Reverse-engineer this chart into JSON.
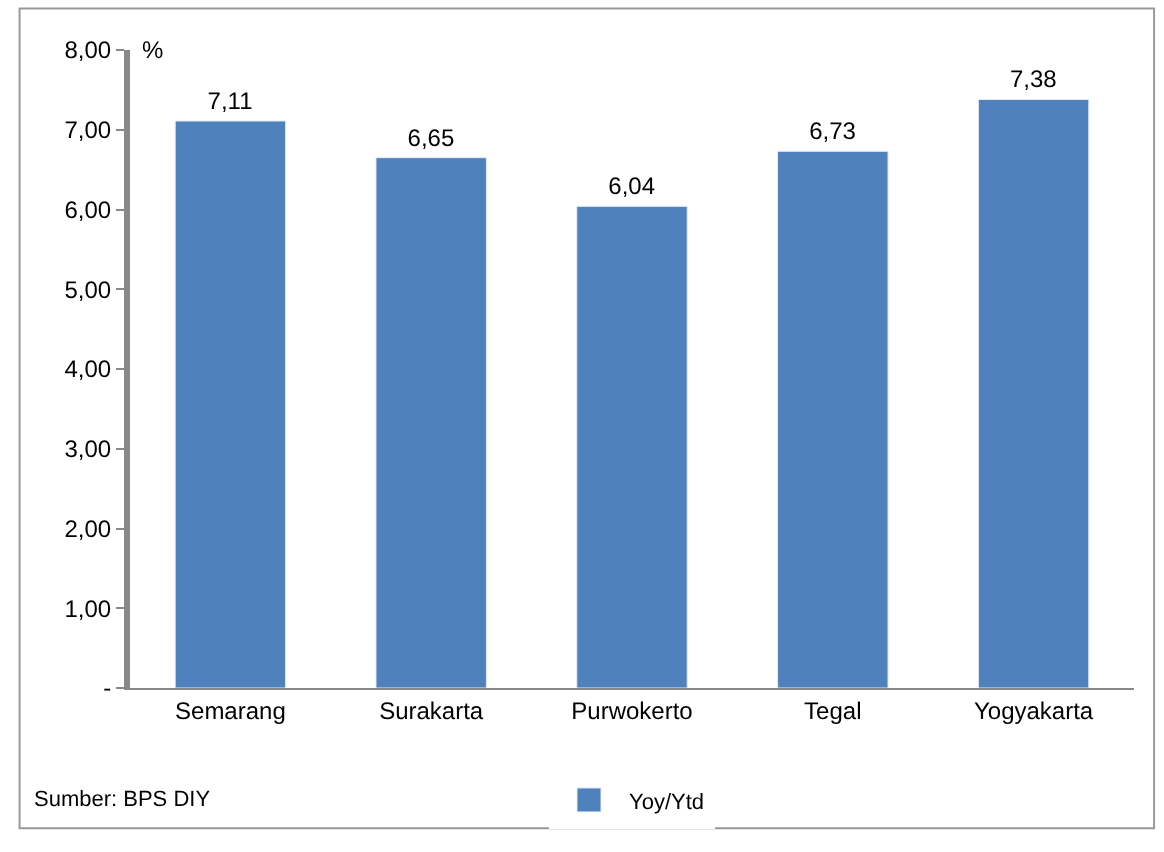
{
  "chart_data": {
    "type": "bar",
    "ylabel": "%",
    "categories": [
      "Semarang",
      "Surakarta",
      "Purwokerto",
      "Tegal",
      "Yogyakarta"
    ],
    "series": [
      {
        "name": "Yoy/Ytd",
        "color": "#4f81bd",
        "values": [
          7.11,
          6.65,
          6.04,
          6.73,
          7.38
        ],
        "value_labels": [
          "7,11",
          "6,65",
          "6,04",
          "6,73",
          "7,38"
        ]
      }
    ],
    "ylim": [
      0,
      8
    ],
    "yticks": [
      {
        "value": 0,
        "label": "-"
      },
      {
        "value": 1,
        "label": "1,00"
      },
      {
        "value": 2,
        "label": "2,00"
      },
      {
        "value": 3,
        "label": "3,00"
      },
      {
        "value": 4,
        "label": "4,00"
      },
      {
        "value": 5,
        "label": "5,00"
      },
      {
        "value": 6,
        "label": "6,00"
      },
      {
        "value": 7,
        "label": "7,00"
      },
      {
        "value": 8,
        "label": "8,00"
      }
    ],
    "legend": "bottom",
    "annotations": [
      "Sumber: BPS DIY"
    ]
  }
}
